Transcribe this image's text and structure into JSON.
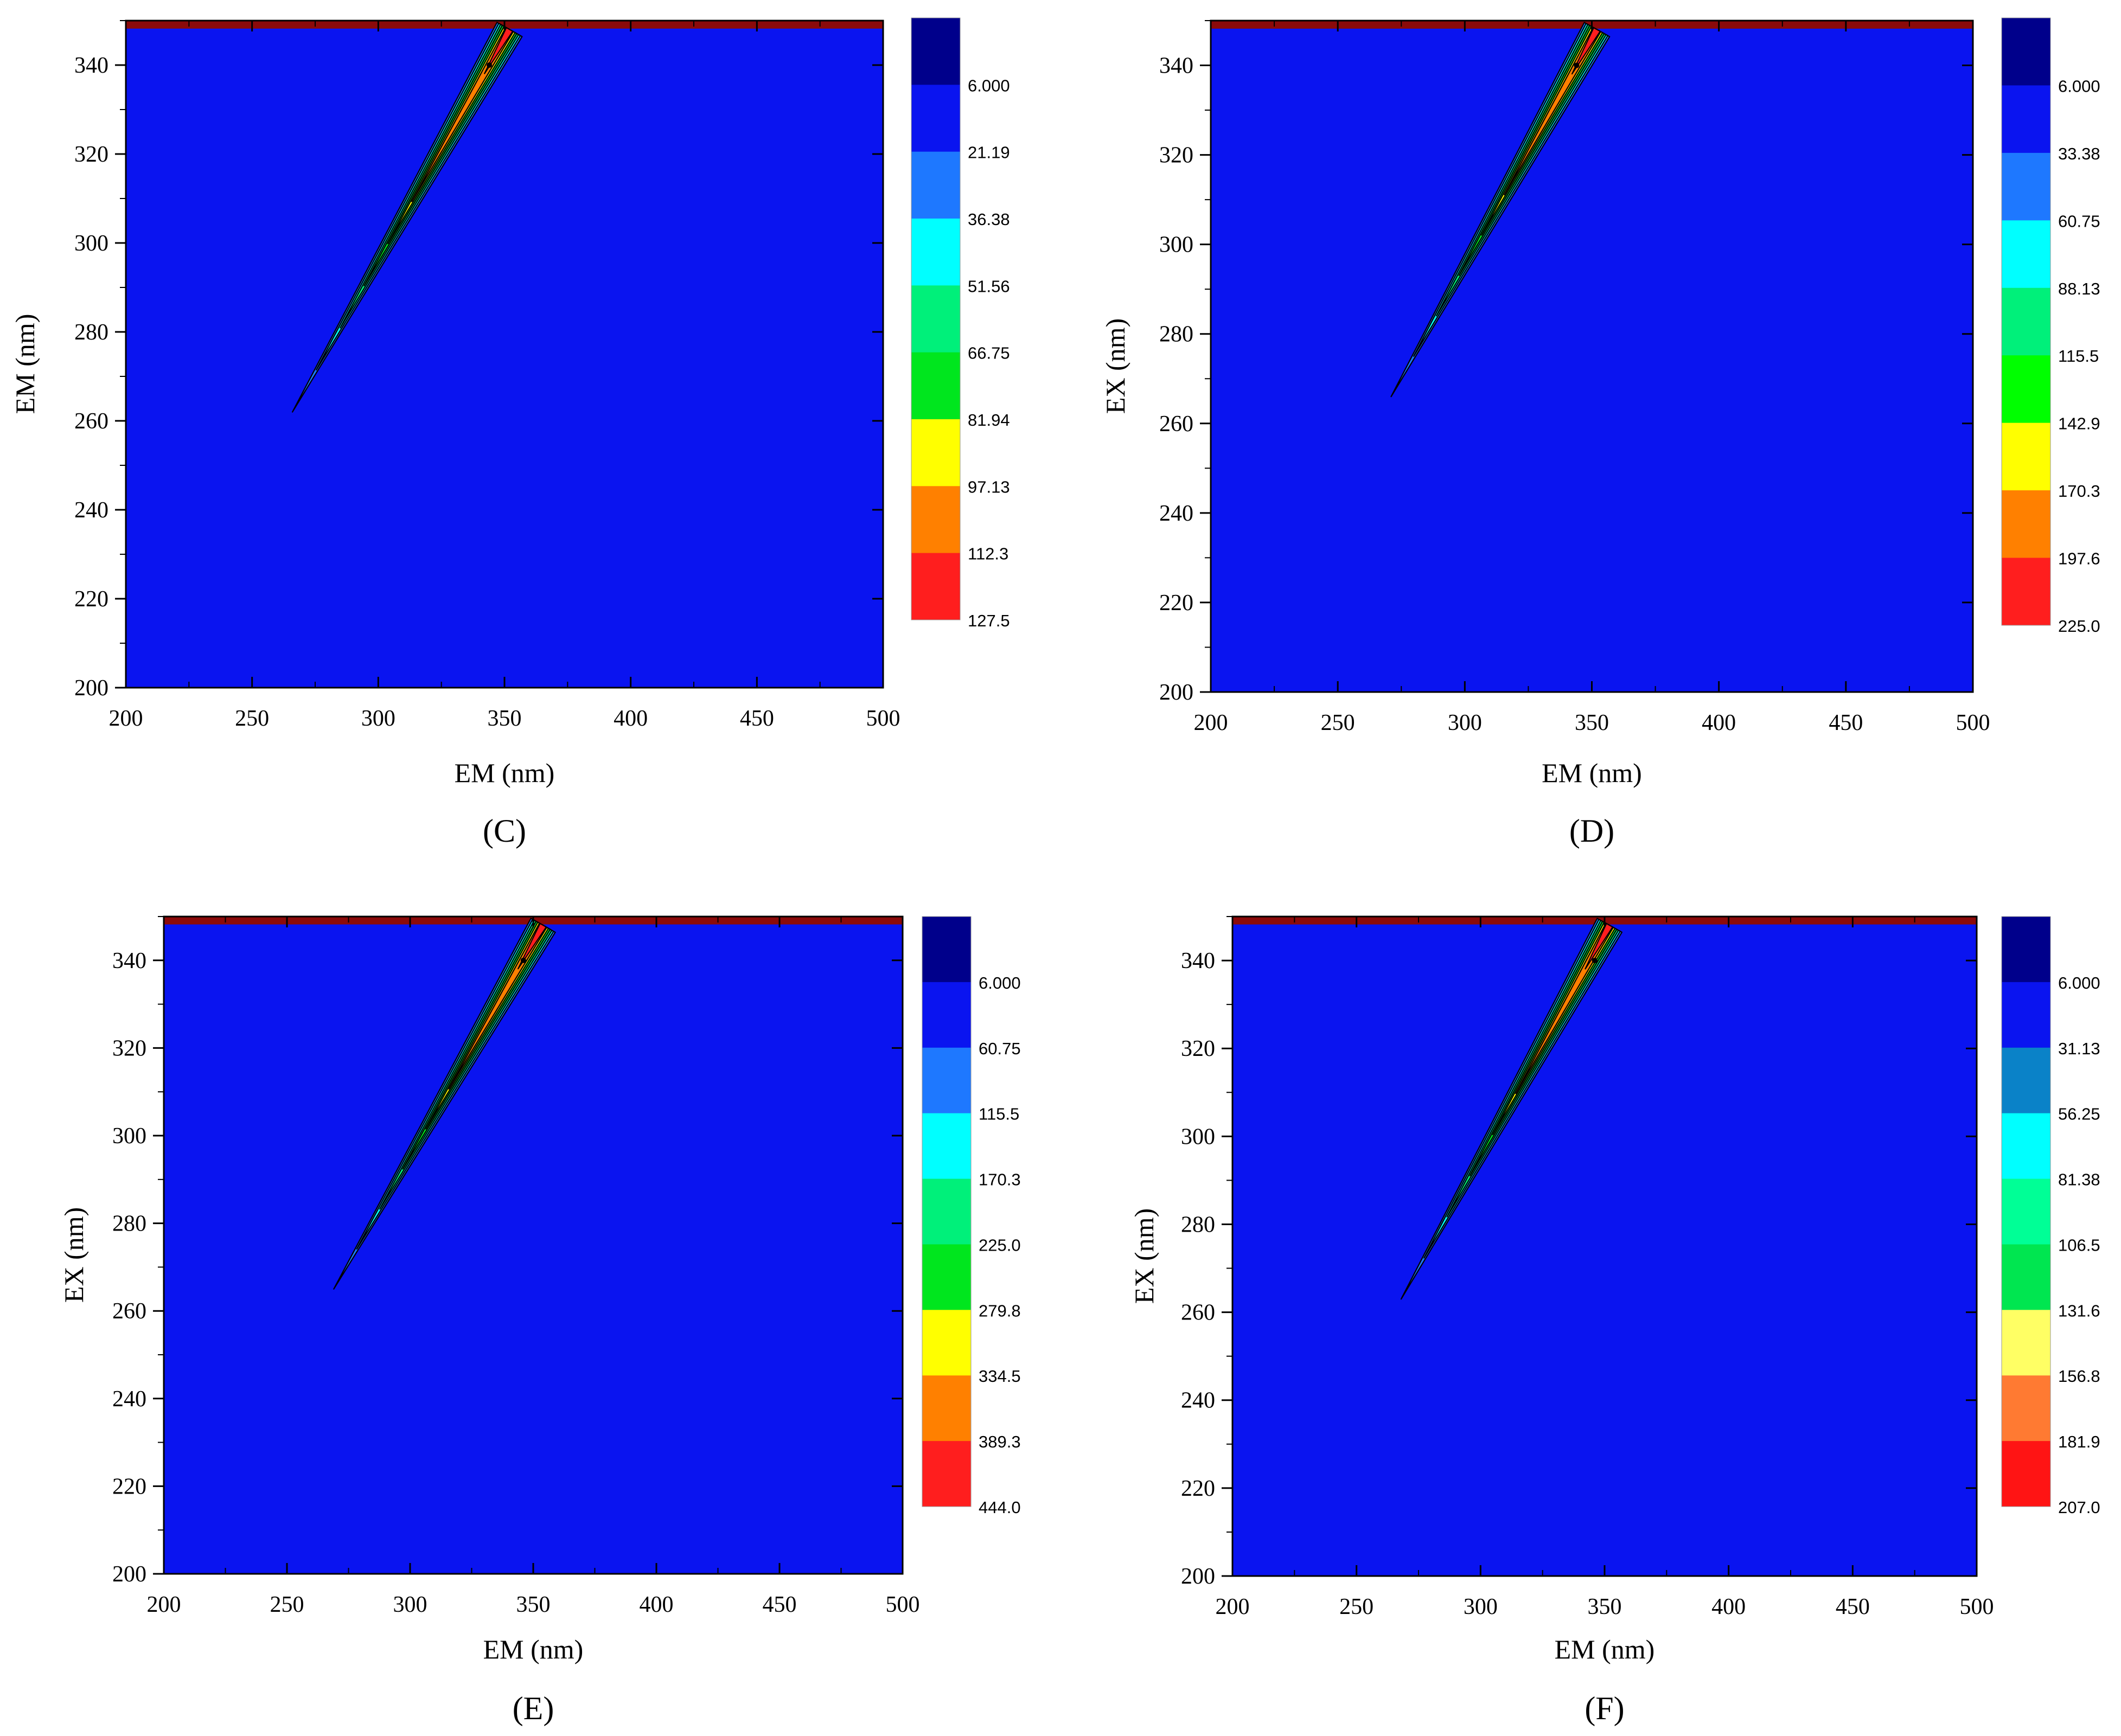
{
  "chart_data": [
    {
      "type": "heatmap",
      "panel_label": "(C)",
      "xlabel": "EM (nm)",
      "ylabel": "EM (nm)",
      "xlim": [
        200,
        500
      ],
      "ylim": [
        200,
        350
      ],
      "xticks": [
        "200",
        "250",
        "300",
        "350",
        "400",
        "450",
        "500"
      ],
      "yticks": [
        "200",
        "220",
        "240",
        "260",
        "280",
        "300",
        "320",
        "340"
      ],
      "colorbar_levels": [
        "6.000",
        "21.19",
        "36.38",
        "51.56",
        "66.75",
        "81.94",
        "97.13",
        "112.3",
        "127.5"
      ],
      "band": {
        "start_em": 266,
        "start_ex": 262,
        "end_em": 352,
        "end_ex": 348,
        "peak_em": 344,
        "peak_ex": 340,
        "red_start": 338
      }
    },
    {
      "type": "heatmap",
      "panel_label": "(D)",
      "xlabel": "EM (nm)",
      "ylabel": "EX (nm)",
      "xlim": [
        200,
        500
      ],
      "ylim": [
        200,
        350
      ],
      "xticks": [
        "200",
        "250",
        "300",
        "350",
        "400",
        "450",
        "500"
      ],
      "yticks": [
        "200",
        "220",
        "240",
        "260",
        "280",
        "300",
        "320",
        "340"
      ],
      "colorbar_levels": [
        "6.000",
        "33.38",
        "60.75",
        "88.13",
        "115.5",
        "142.9",
        "170.3",
        "197.6",
        "225.0"
      ],
      "band": {
        "start_em": 271,
        "start_ex": 266,
        "end_em": 352,
        "end_ex": 348,
        "peak_em": 344,
        "peak_ex": 340,
        "red_start": 338
      }
    },
    {
      "type": "heatmap",
      "panel_label": "(E)",
      "xlabel": "EM (nm)",
      "ylabel": "EX (nm)",
      "xlim": [
        200,
        500
      ],
      "ylim": [
        200,
        350
      ],
      "xticks": [
        "200",
        "250",
        "300",
        "350",
        "400",
        "450",
        "500"
      ],
      "yticks": [
        "200",
        "220",
        "240",
        "260",
        "280",
        "300",
        "320",
        "340"
      ],
      "colorbar_levels": [
        "6.000",
        "60.75",
        "115.5",
        "170.3",
        "225.0",
        "279.8",
        "334.5",
        "389.3",
        "444.0"
      ],
      "band": {
        "start_em": 269,
        "start_ex": 265,
        "end_em": 354,
        "end_ex": 348,
        "peak_em": 346,
        "peak_ex": 340,
        "red_start": 338
      }
    },
    {
      "type": "heatmap",
      "panel_label": "(F)",
      "xlabel": "EM (nm)",
      "ylabel": "EX (nm)",
      "xlim": [
        200,
        500
      ],
      "ylim": [
        200,
        350
      ],
      "xticks": [
        "200",
        "250",
        "300",
        "350",
        "400",
        "450",
        "500"
      ],
      "yticks": [
        "200",
        "220",
        "240",
        "260",
        "280",
        "300",
        "320",
        "340"
      ],
      "colorbar_levels": [
        "6.000",
        "31.13",
        "56.25",
        "81.38",
        "106.5",
        "131.6",
        "156.8",
        "181.9",
        "207.0"
      ],
      "band": {
        "start_em": 268,
        "start_ex": 263,
        "end_em": 352,
        "end_ex": 348,
        "peak_em": 346,
        "peak_ex": 340,
        "red_start": 338
      }
    }
  ],
  "colors": {
    "background": "#0a14f0",
    "top_strip": "#8b0a0a",
    "colorbar_c": [
      "#00008b",
      "#0a14f0",
      "#1e78ff",
      "#00ffff",
      "#00f07a",
      "#00e61e",
      "#ffff00",
      "#ff8000",
      "#ff1e1e"
    ],
    "colorbar_d": [
      "#00008b",
      "#0a14f0",
      "#1e78ff",
      "#00ffff",
      "#00f07a",
      "#00ff00",
      "#ffff00",
      "#ff8000",
      "#ff1e1e"
    ],
    "colorbar_e": [
      "#00008b",
      "#0a14f0",
      "#1e78ff",
      "#00ffff",
      "#00f07a",
      "#00e61e",
      "#ffff00",
      "#ff8000",
      "#ff1e1e"
    ],
    "colorbar_f": [
      "#00008b",
      "#0a14f0",
      "#0a82c8",
      "#00ffff",
      "#00ff96",
      "#00e650",
      "#ffff64",
      "#ff7a32",
      "#ff1414"
    ]
  }
}
